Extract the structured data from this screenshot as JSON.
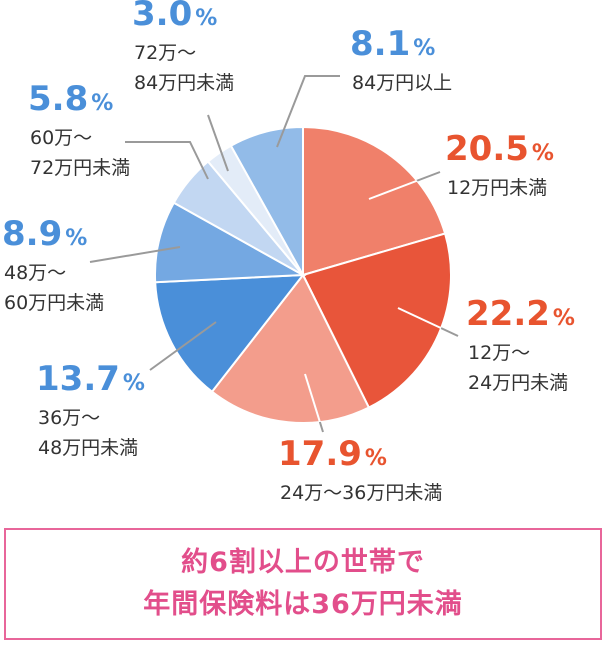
{
  "chart_data": {
    "type": "pie",
    "start": "12 o'clock",
    "direction": "clockwise",
    "slices": [
      {
        "percent": 20.5,
        "percent_text": "20.5",
        "lines": [
          "12万円未満"
        ],
        "color": "#f0806a",
        "label_color": "#e8542f"
      },
      {
        "percent": 22.2,
        "percent_text": "22.2",
        "lines": [
          "12万～",
          "24万円未満"
        ],
        "color": "#e8553a",
        "label_color": "#e8542f"
      },
      {
        "percent": 17.9,
        "percent_text": "17.9",
        "lines": [
          "24万～36万円未満"
        ],
        "color": "#f39d8c",
        "label_color": "#e8542f"
      },
      {
        "percent": 13.7,
        "percent_text": "13.7",
        "lines": [
          "36万～",
          "48万円未満"
        ],
        "color": "#4a8fd9",
        "label_color": "#4a8fd9"
      },
      {
        "percent": 8.9,
        "percent_text": "8.9",
        "lines": [
          "48万～",
          "60万円未満"
        ],
        "color": "#74a8e2",
        "label_color": "#4a8fd9"
      },
      {
        "percent": 5.8,
        "percent_text": "5.8",
        "lines": [
          "60万～",
          "72万円未満"
        ],
        "color": "#c2d7f2",
        "label_color": "#4a8fd9"
      },
      {
        "percent": 3.0,
        "percent_text": "3.0",
        "lines": [
          "72万～",
          "84万円未満"
        ],
        "color": "#e3ecf8",
        "label_color": "#4a8fd9"
      },
      {
        "percent": 8.1,
        "percent_text": "8.1",
        "lines": [
          "84万円以上"
        ],
        "color": "#92bbe8",
        "label_color": "#4a8fd9"
      }
    ],
    "percent_sign": "%"
  },
  "summary": {
    "line1": "約6割以上の世帯で",
    "line2": "年間保険料は36万円未満",
    "border_color": "#e8669a",
    "text_color": "#e24e8b"
  }
}
